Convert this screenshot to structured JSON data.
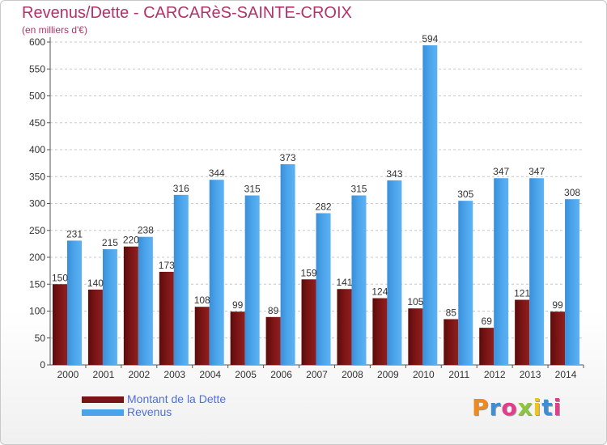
{
  "header": {
    "title": "Revenus/Dette - CARCARèS-SAINTE-CROIX",
    "subtitle": "(en milliers d'€)"
  },
  "chart_data": {
    "type": "bar",
    "title": "Revenus/Dette - CARCARèS-SAINTE-CROIX",
    "subtitle": "(en milliers d'€)",
    "xlabel": "",
    "ylabel": "",
    "categories": [
      "2000",
      "2001",
      "2002",
      "2003",
      "2004",
      "2005",
      "2006",
      "2007",
      "2008",
      "2009",
      "2010",
      "2011",
      "2012",
      "2013",
      "2014"
    ],
    "series": [
      {
        "name": "Montant de la Dette",
        "color": "#7a1414",
        "values": [
          150,
          140,
          220,
          173,
          108,
          99,
          89,
          159,
          141,
          124,
          105,
          85,
          69,
          121,
          99
        ]
      },
      {
        "name": "Revenus",
        "color": "#4aa3ea",
        "values": [
          231,
          215,
          238,
          316,
          344,
          315,
          373,
          282,
          315,
          343,
          594,
          305,
          347,
          347,
          308
        ]
      }
    ],
    "ylim": [
      0,
      600
    ],
    "yticks": [
      0,
      50,
      100,
      150,
      200,
      250,
      300,
      350,
      400,
      450,
      500,
      550,
      600
    ],
    "grid": true,
    "legend_position": "bottom-left"
  },
  "legend": {
    "items": [
      {
        "label": "Montant de la Dette",
        "color": "#7a1414"
      },
      {
        "label": "Revenus",
        "color": "#4aa3ea"
      }
    ]
  },
  "logo": {
    "letters": [
      {
        "ch": "P",
        "color": "#f08a1c"
      },
      {
        "ch": "r",
        "color": "#3a8fd8"
      },
      {
        "ch": "o",
        "color": "#e23c8a"
      },
      {
        "ch": "x",
        "color": "#8cc63f"
      },
      {
        "ch": "i",
        "color": "#f2c418"
      },
      {
        "ch": "t",
        "color": "#3a8fd8"
      },
      {
        "ch": "i",
        "color": "#e23c8a"
      }
    ]
  }
}
